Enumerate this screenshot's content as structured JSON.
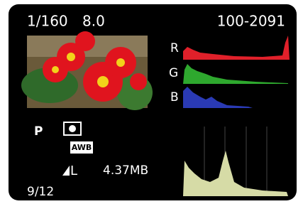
{
  "shooting": {
    "shutter": "1/160",
    "aperture": "8.0",
    "file_number": "100-2091"
  },
  "histogram": {
    "channels": [
      "R",
      "G",
      "B"
    ]
  },
  "mode": "P",
  "white_balance": "AWB",
  "quality": "L",
  "file_size": "4.37MB",
  "image_index": "9/12"
}
